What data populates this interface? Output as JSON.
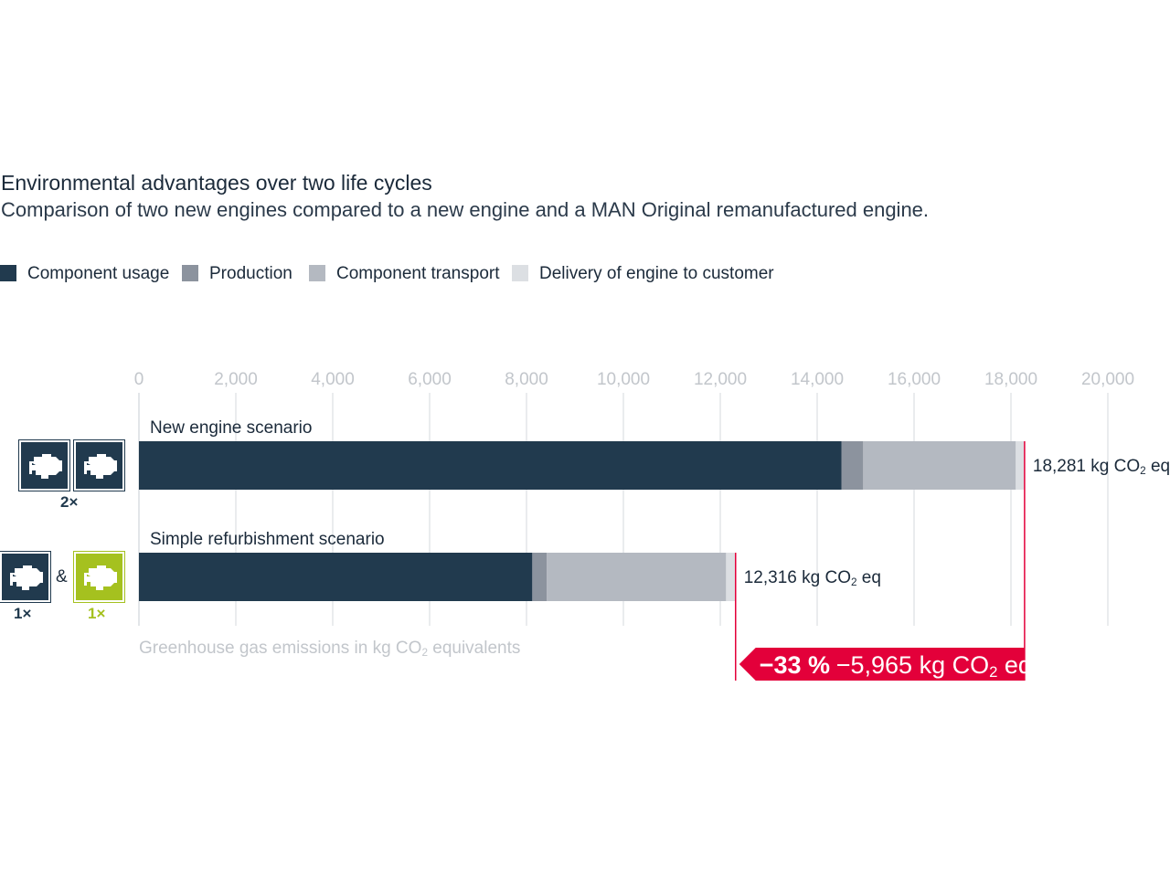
{
  "header": {
    "title": "Environmental advantages over two life cycles",
    "subtitle": "Comparison of two new engines compared to a new engine and a MAN Original remanufactured engine."
  },
  "colors": {
    "component_usage": "#213a4e",
    "production": "#8c939e",
    "component_transport": "#b4b9c1",
    "delivery": "#dcdfe3",
    "accent": "#e3003a",
    "new_engine_green": "#a5c11f",
    "axis_text": "#c2c6cb",
    "grid": "#e3e6e9"
  },
  "icons": {
    "engine_icon": "engine-icon",
    "engine_icon_remanufactured": "engine-icon"
  },
  "scenario_icons": {
    "new": {
      "multiplier": "2×"
    },
    "refurb": {
      "new_multiplier": "1×",
      "joiner": "&",
      "reman_multiplier": "1×"
    }
  },
  "chart_data": {
    "type": "bar",
    "orientation": "horizontal",
    "stacked": true,
    "xlim": [
      0,
      20000
    ],
    "ticks": [
      0,
      2000,
      4000,
      6000,
      8000,
      10000,
      12000,
      14000,
      16000,
      18000,
      20000
    ],
    "tick_labels": [
      "0",
      "2,000",
      "4,000",
      "6,000",
      "8,000",
      "10,000",
      "12,000",
      "14,000",
      "16,000",
      "18,000",
      "20,000"
    ],
    "grid": true,
    "legend_position": "top-left",
    "xlabel": "Greenhouse gas emissions in kg CO2 equivalents",
    "xlabel_parts": [
      "Greenhouse gas emissions in kg CO",
      "2",
      " equivalents"
    ],
    "categories": [
      "New engine scenario",
      "Simple refurbishment scenario"
    ],
    "series": [
      {
        "name": "Component usage",
        "values": [
          14500,
          8120
        ]
      },
      {
        "name": "Production",
        "values": [
          450,
          300
        ]
      },
      {
        "name": "Component transport",
        "values": [
          3150,
          3700
        ]
      },
      {
        "name": "Delivery of engine to customer",
        "values": [
          181,
          196
        ]
      }
    ],
    "totals": [
      18281,
      12316
    ],
    "total_labels": [
      [
        "18,281 kg CO",
        "2",
        " eq"
      ],
      [
        "12,316 kg CO",
        "2",
        " eq"
      ]
    ],
    "difference": {
      "percent_label": "−33 %",
      "value_label_parts": [
        "−5,965 kg CO",
        "2",
        " eq"
      ],
      "value": -5965
    }
  }
}
